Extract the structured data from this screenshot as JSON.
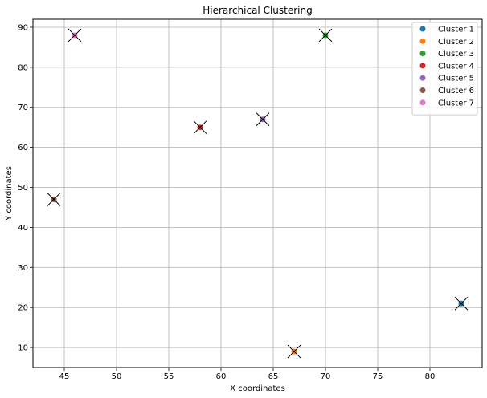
{
  "chart_data": {
    "type": "scatter",
    "title": "Hierarchical Clustering",
    "xlabel": "X coordinates",
    "ylabel": "Y coordinates",
    "xlim": [
      42,
      85
    ],
    "ylim": [
      5,
      92
    ],
    "xticks": [
      45,
      50,
      55,
      60,
      65,
      70,
      75,
      80
    ],
    "yticks": [
      10,
      20,
      30,
      40,
      50,
      60,
      70,
      80,
      90
    ],
    "grid": true,
    "legend_position": "top-right",
    "series": [
      {
        "name": "Cluster 1",
        "color": "#1f77b4",
        "points": [
          {
            "x": 83,
            "y": 21
          }
        ]
      },
      {
        "name": "Cluster 2",
        "color": "#ff7f0e",
        "points": [
          {
            "x": 67,
            "y": 9
          }
        ]
      },
      {
        "name": "Cluster 3",
        "color": "#2ca02c",
        "points": [
          {
            "x": 70,
            "y": 88
          }
        ]
      },
      {
        "name": "Cluster 4",
        "color": "#d62728",
        "points": [
          {
            "x": 58,
            "y": 65
          }
        ]
      },
      {
        "name": "Cluster 5",
        "color": "#9467bd",
        "points": [
          {
            "x": 64,
            "y": 67
          }
        ]
      },
      {
        "name": "Cluster 6",
        "color": "#8c564b",
        "points": [
          {
            "x": 44,
            "y": 47
          }
        ]
      },
      {
        "name": "Cluster 7",
        "color": "#e377c2",
        "points": [
          {
            "x": 46,
            "y": 88
          }
        ]
      }
    ],
    "centroid_marker": "x",
    "centroid_color": "#000000",
    "centroids": [
      {
        "x": 83,
        "y": 21
      },
      {
        "x": 67,
        "y": 9
      },
      {
        "x": 70,
        "y": 88
      },
      {
        "x": 58,
        "y": 65
      },
      {
        "x": 64,
        "y": 67
      },
      {
        "x": 44,
        "y": 47
      },
      {
        "x": 46,
        "y": 88
      }
    ]
  }
}
